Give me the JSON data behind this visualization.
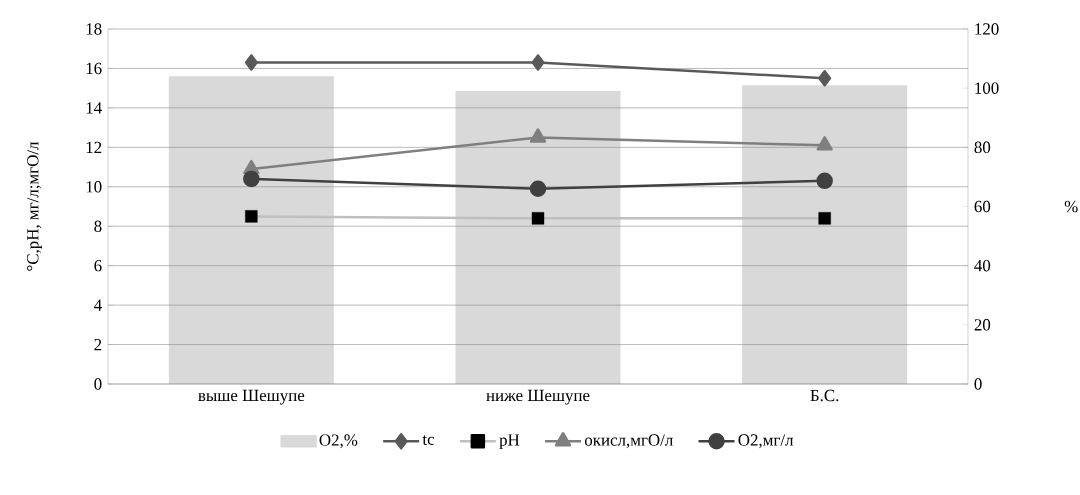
{
  "chart_data": {
    "type": "line",
    "categories": [
      "выше Шешупе",
      "ниже Шешупе",
      "Б.С."
    ],
    "ylabel": "°C,pH, мг/л;мгО/л",
    "y2label": "%",
    "ylim": [
      0,
      18
    ],
    "yticks": [
      0,
      2,
      4,
      6,
      8,
      10,
      12,
      14,
      16,
      18
    ],
    "y2lim": [
      0,
      120
    ],
    "y2ticks": [
      0,
      20,
      40,
      60,
      80,
      100,
      120
    ],
    "grid": "y",
    "legend": "bottom",
    "series": [
      {
        "name": "O2,%",
        "type": "bar",
        "axis": "y2",
        "color": "#d9d9d9",
        "values": [
          104,
          99,
          101
        ]
      },
      {
        "name": "tc",
        "color": "#595959",
        "marker": "diamond",
        "values": [
          16.3,
          16.3,
          15.5
        ]
      },
      {
        "name": "pH",
        "color": "#bfbfbf",
        "colors": [
          "#000000",
          "#000000",
          "#000000"
        ],
        "marker": "square",
        "values": [
          8.5,
          8.4,
          8.4
        ]
      },
      {
        "name": "окисл,мгО/л",
        "color": "#7f7f7f",
        "marker": "triangle",
        "values": [
          10.9,
          12.5,
          12.1
        ]
      },
      {
        "name": "O2,мг/л",
        "color": "#404040",
        "marker": "circle",
        "values": [
          10.4,
          9.9,
          10.3
        ]
      }
    ]
  }
}
